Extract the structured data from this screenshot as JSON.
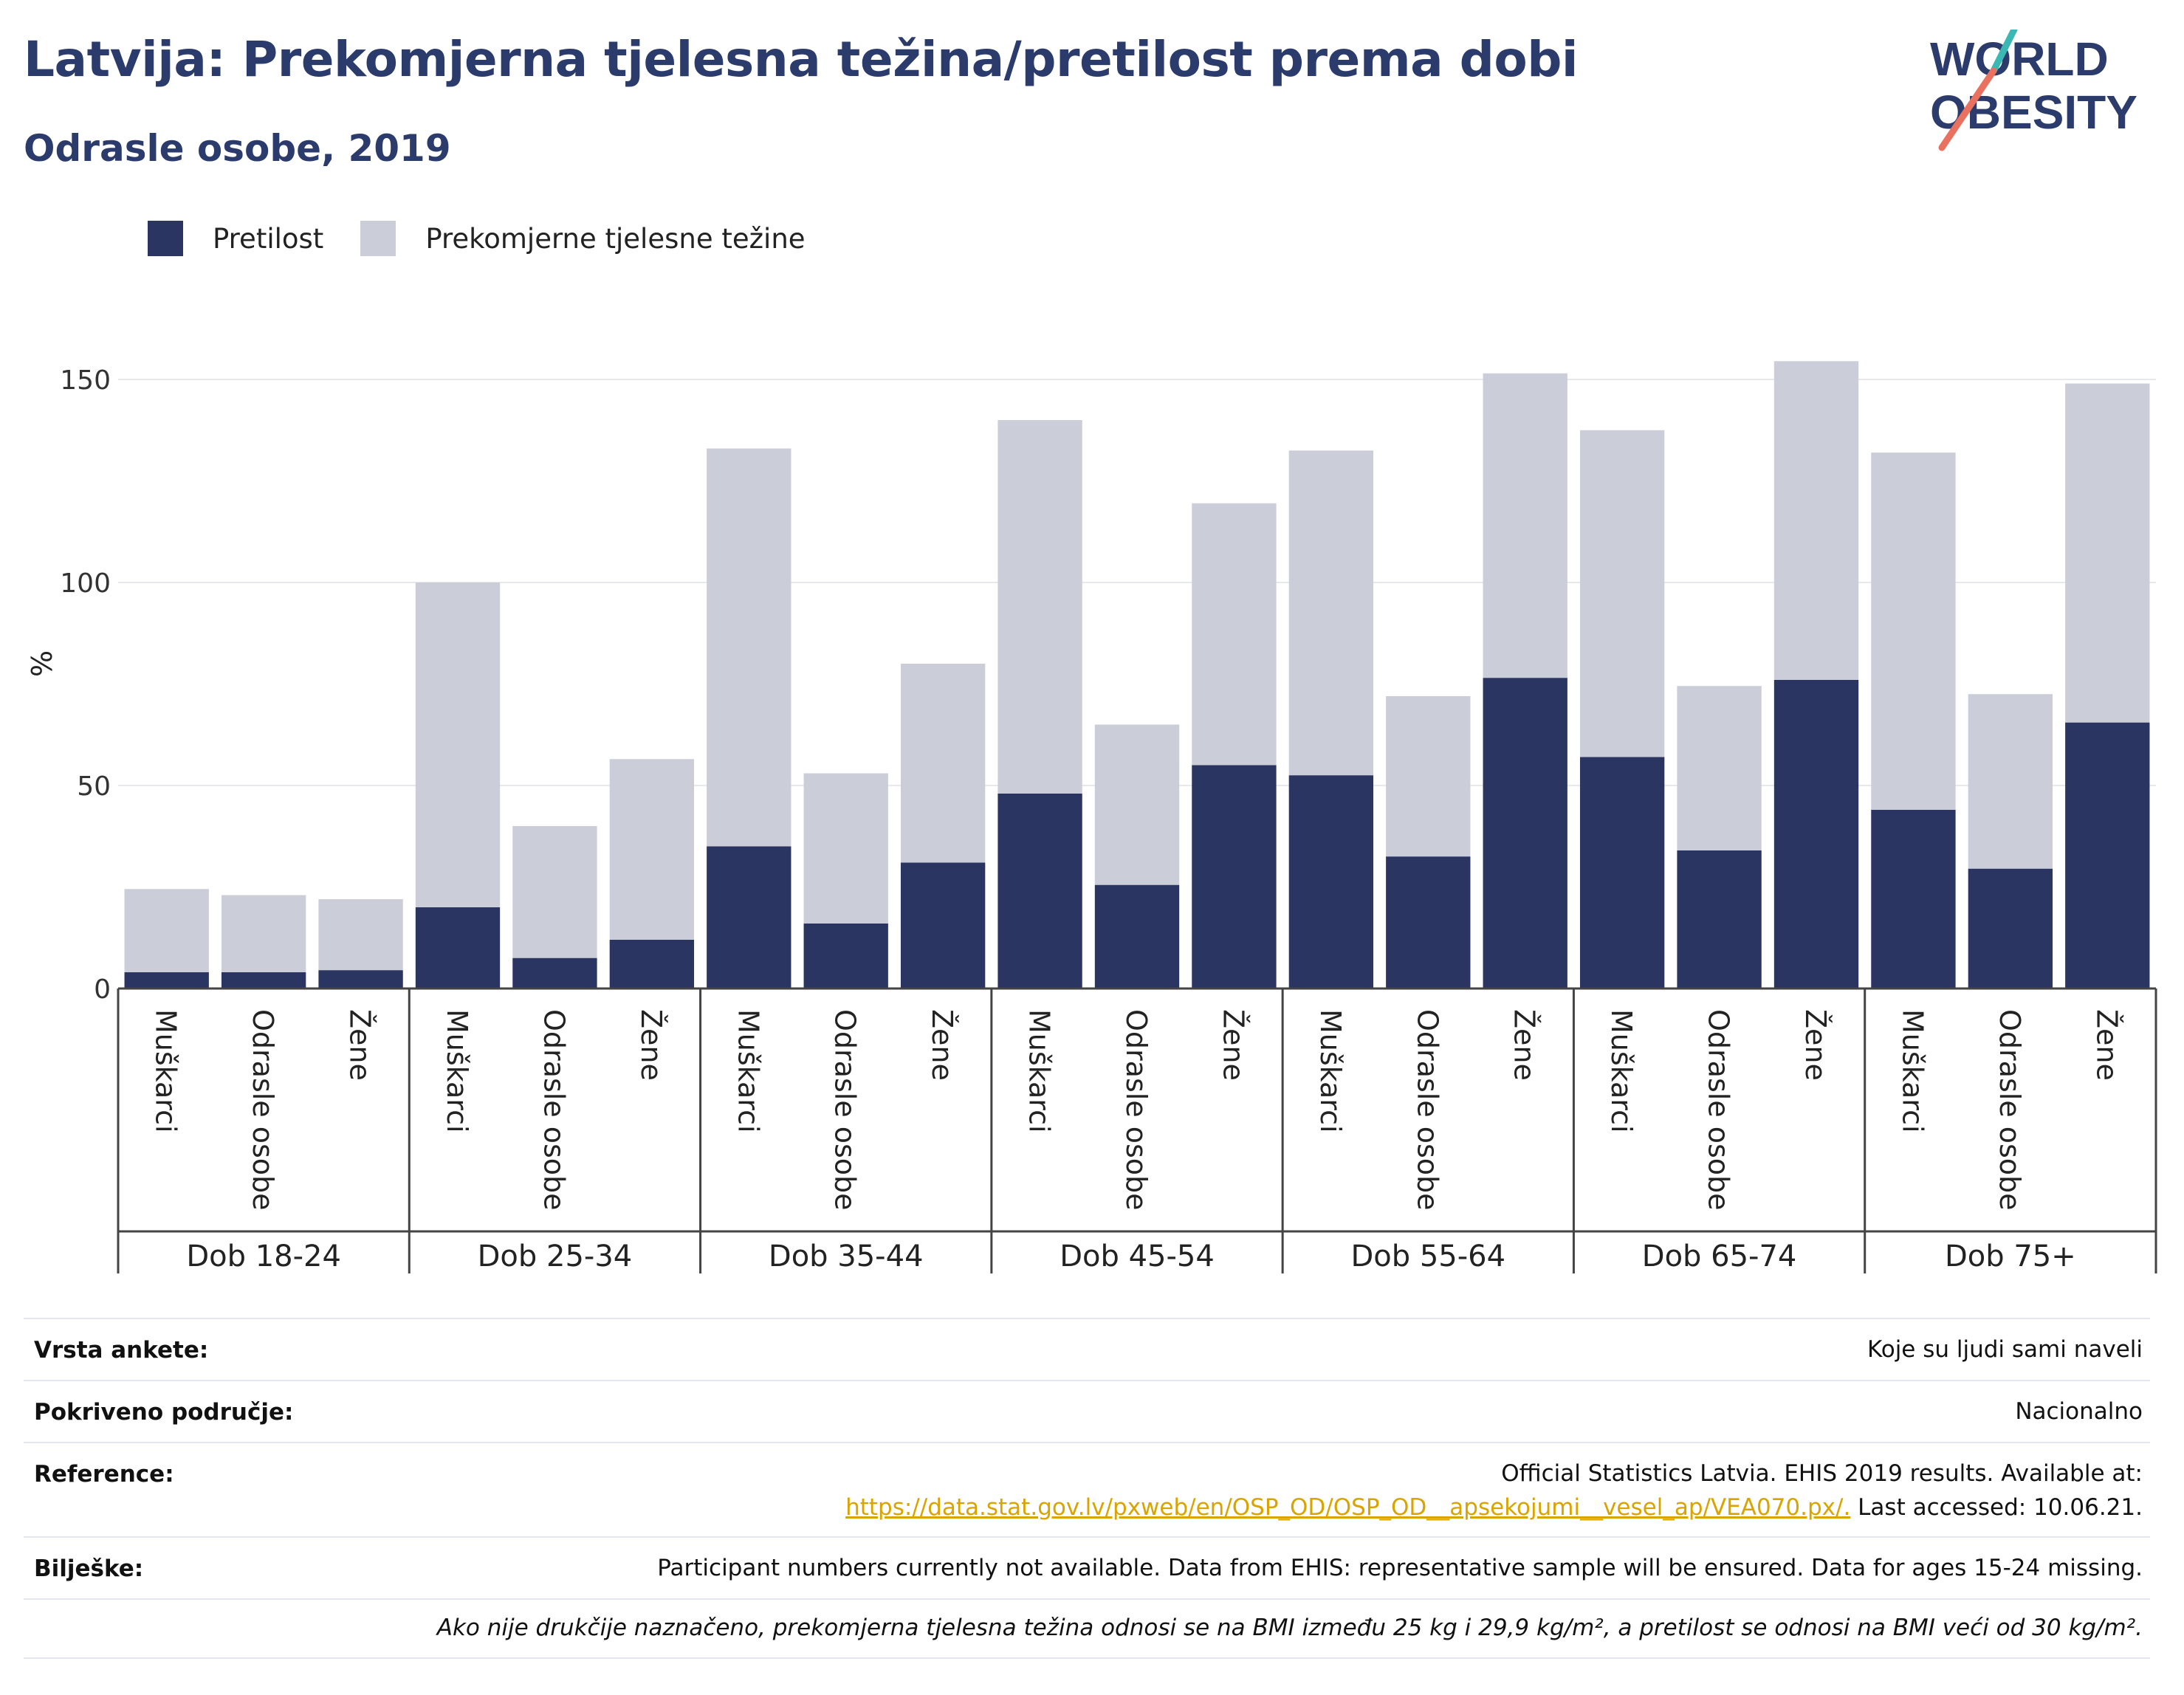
{
  "header": {
    "title": "Latvija: Prekomjerna tjelesna težina/pretilost prema dobi",
    "subtitle": "Odrasle osobe, 2019"
  },
  "logo": {
    "line1": "WORLD",
    "line2": "OBESITY",
    "accent_teal": "#3bb8b3",
    "accent_coral": "#e8715f",
    "color": "#2b3b6b"
  },
  "colors": {
    "obesity": "#2b3561",
    "overweight": "#cbcdd9",
    "title": "#2b3b6b",
    "grid": "#e6e8ee",
    "axis": "#444444"
  },
  "chart_data": {
    "type": "bar",
    "stacked": true,
    "ylabel": "%",
    "ylim": [
      0,
      160
    ],
    "yticks": [
      0,
      50,
      100,
      150
    ],
    "grid": true,
    "legend_position": "top-left",
    "groups": [
      "Dob 18-24",
      "Dob 25-34",
      "Dob 35-44",
      "Dob 45-54",
      "Dob 55-64",
      "Dob 65-74",
      "Dob 75+"
    ],
    "subcategories": [
      "Muškarci",
      "Odrasle osobe",
      "Žene"
    ],
    "series": [
      {
        "name": "Pretilost",
        "values": [
          4,
          4,
          4.5,
          20,
          7.5,
          12,
          35,
          16,
          31,
          48,
          25.5,
          55,
          52.5,
          32.5,
          76.5,
          57,
          34,
          76,
          44,
          29.5,
          65.5
        ]
      },
      {
        "name": "Prekomjerne tjelesne težine",
        "values": [
          20.5,
          19,
          17.5,
          80,
          32.5,
          44.5,
          98,
          37,
          49,
          92,
          39.5,
          64.5,
          80,
          39.5,
          75,
          80.5,
          40.5,
          78.5,
          88,
          43,
          83.5
        ]
      }
    ]
  },
  "footer": {
    "rows": [
      {
        "label": "Vrsta ankete:",
        "value": "Koje su ljudi sami naveli"
      },
      {
        "label": "Pokriveno područje:",
        "value": "Nacionalno"
      }
    ],
    "reference": {
      "label": "Reference:",
      "line1": "Official Statistics Latvia. EHIS 2019 results. Available at:",
      "link": "https://data.stat.gov.lv/pxweb/en/OSP_OD/OSP_OD__apsekojumi__vesel_ap/VEA070.px/.",
      "after_link": " Last accessed: 10.06.21."
    },
    "notes": {
      "label": "Bilješke:",
      "value": "Participant numbers currently not available. Data from EHIS: representative sample will be ensured. Data for ages 15-24 missing."
    },
    "definition": "Ako nije drukčije naznačeno, prekomjerna tjelesna težina odnosi se na BMI između 25 kg i 29,9 kg/m², a pretilost se odnosi na BMI veći od 30 kg/m²."
  }
}
